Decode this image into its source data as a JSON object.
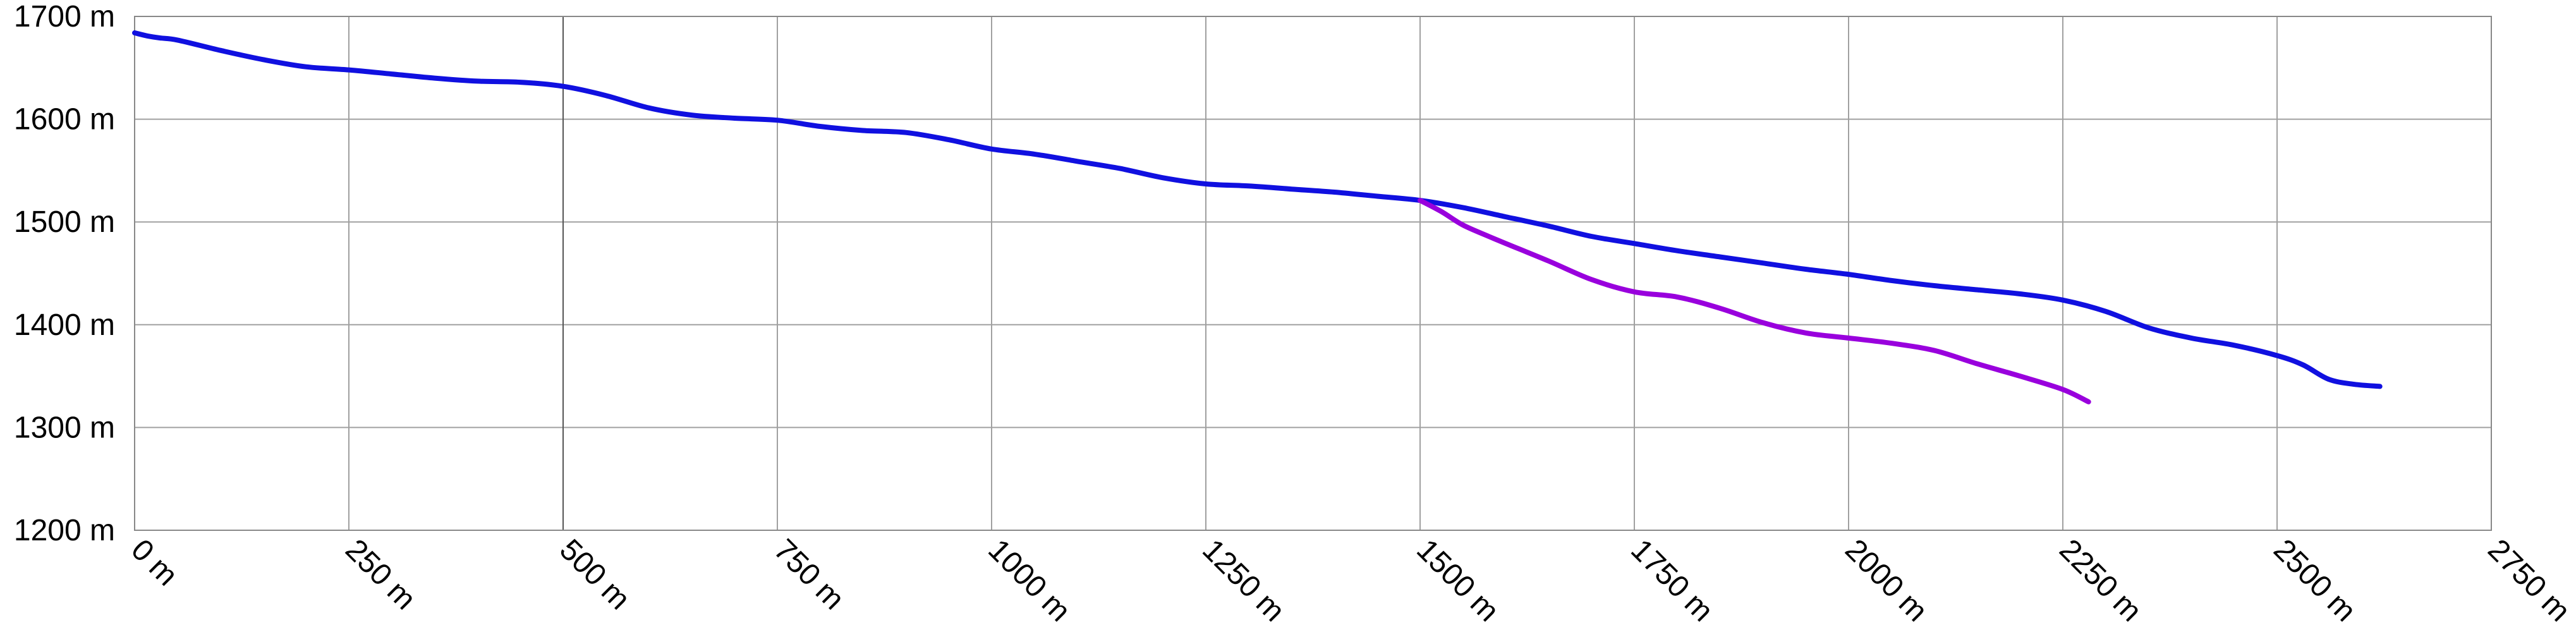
{
  "chart_data": {
    "type": "line",
    "title": "",
    "xlabel": "",
    "ylabel": "",
    "x_unit": "m",
    "y_unit": "m",
    "xlim": [
      0,
      2750
    ],
    "ylim": [
      1200,
      1700
    ],
    "x_ticks": [
      0,
      250,
      500,
      750,
      1000,
      1250,
      1500,
      1750,
      2000,
      2250,
      2500,
      2750
    ],
    "y_ticks": [
      1200,
      1300,
      1400,
      1500,
      1600,
      1700
    ],
    "x_tick_labels": [
      "0 m",
      "250 m",
      "500 m",
      "750 m",
      "1000 m",
      "1250 m",
      "1500 m",
      "1750 m",
      "2000 m",
      "2250 m",
      "2500 m",
      "2750 m"
    ],
    "y_tick_labels": [
      "1200 m",
      "1300 m",
      "1400 m",
      "1500 m",
      "1600 m",
      "1700 m"
    ],
    "highlighted_x_gridline": 500,
    "grid": true,
    "legend": false,
    "series": [
      {
        "color": "#1010e0",
        "x": [
          0,
          15,
          30,
          50,
          100,
          150,
          200,
          250,
          300,
          350,
          400,
          450,
          500,
          550,
          600,
          650,
          700,
          750,
          800,
          850,
          900,
          950,
          1000,
          1050,
          1100,
          1150,
          1200,
          1250,
          1300,
          1350,
          1400,
          1450,
          1500,
          1550,
          1600,
          1650,
          1700,
          1750,
          1800,
          1850,
          1900,
          1950,
          2000,
          2050,
          2100,
          2150,
          2200,
          2250,
          2300,
          2350,
          2400,
          2450,
          2500,
          2530,
          2560,
          2590,
          2620
        ],
        "y": [
          1684,
          1681,
          1679,
          1677,
          1667,
          1658,
          1651,
          1648,
          1644,
          1640,
          1637,
          1636,
          1632,
          1623,
          1611,
          1604,
          1601,
          1599,
          1593,
          1589,
          1587,
          1580,
          1571,
          1566,
          1559,
          1552,
          1543,
          1537,
          1535,
          1532,
          1529,
          1525,
          1521,
          1514,
          1505,
          1496,
          1486,
          1479,
          1472,
          1466,
          1460,
          1454,
          1449,
          1443,
          1438,
          1434,
          1430,
          1424,
          1413,
          1397,
          1387,
          1380,
          1370,
          1361,
          1347,
          1342,
          1340
        ]
      },
      {
        "color": "#9900dd",
        "x": [
          1500,
          1525,
          1550,
          1580,
          1600,
          1650,
          1700,
          1750,
          1800,
          1850,
          1900,
          1950,
          2000,
          2050,
          2100,
          2150,
          2200,
          2250,
          2280
        ],
        "y": [
          1521,
          1510,
          1497,
          1486,
          1479,
          1462,
          1444,
          1432,
          1427,
          1416,
          1402,
          1392,
          1387,
          1382,
          1375,
          1362,
          1350,
          1337,
          1325
        ]
      }
    ]
  }
}
